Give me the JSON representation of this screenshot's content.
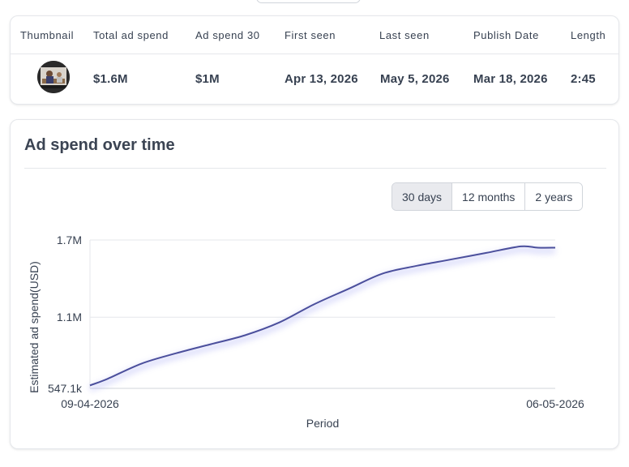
{
  "table": {
    "headers": [
      "Thumbnail",
      "Total ad spend",
      "Ad spend 30",
      "First seen",
      "Last seen",
      "Publish Date",
      "Length"
    ],
    "row": {
      "total_ad_spend": "$1.6M",
      "ad_spend_30": "$1M",
      "first_seen": "Apr 13, 2026",
      "last_seen": "May 5, 2026",
      "publish_date": "Mar 18, 2026",
      "length": "2:45"
    }
  },
  "chart_section": {
    "title": "Ad spend over time",
    "range_options": [
      "30 days",
      "12 months",
      "2 years"
    ],
    "selected_range": "30 days"
  },
  "chart_data": {
    "type": "line",
    "title": "",
    "xlabel": "Period",
    "ylabel": "Estimated ad spend(USD)",
    "x_tick_labels": [
      "09-04-2026",
      "06-05-2026"
    ],
    "y_tick_labels": [
      "547.1k",
      "1.1M",
      "1.7M"
    ],
    "ylim": [
      547100,
      1700000
    ],
    "grid": true,
    "series": [
      {
        "color": "#4b4f9c",
        "x": [
          "09-04-2026",
          "10-04-2026",
          "12-04-2026",
          "14-04-2026",
          "16-04-2026",
          "18-04-2026",
          "20-04-2026",
          "22-04-2026",
          "24-04-2026",
          "26-04-2026",
          "28-04-2026",
          "30-04-2026",
          "02-05-2026",
          "04-05-2026",
          "05-05-2026",
          "06-05-2026"
        ],
        "values": [
          570000,
          620000,
          740000,
          820000,
          890000,
          960000,
          1060000,
          1200000,
          1320000,
          1440000,
          1500000,
          1550000,
          1600000,
          1650000,
          1640000,
          1640000
        ]
      }
    ]
  }
}
